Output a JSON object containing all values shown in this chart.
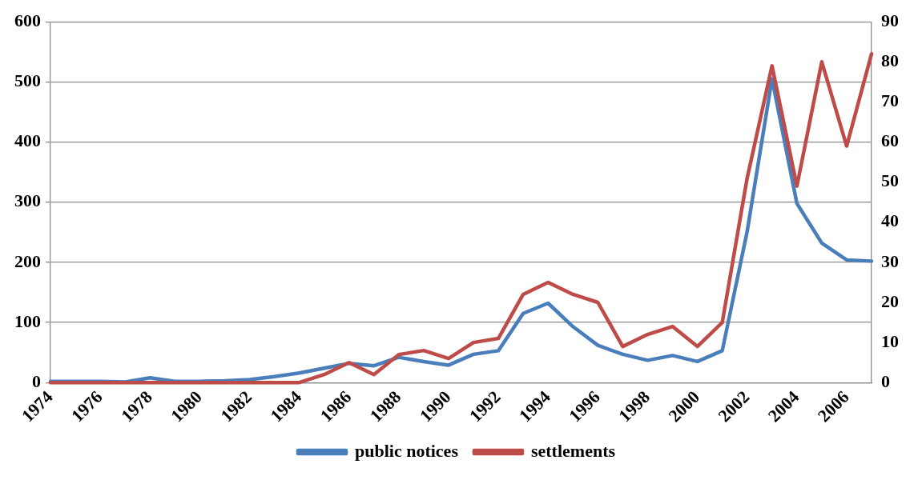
{
  "chart_data": {
    "type": "line",
    "categories": [
      "1974",
      null,
      "1976",
      null,
      "1978",
      null,
      "1980",
      null,
      "1982",
      null,
      "1984",
      null,
      "1986",
      null,
      "1988",
      null,
      "1990",
      null,
      "1992",
      null,
      "1994",
      null,
      "1996",
      null,
      "1998",
      null,
      "2000",
      null,
      "2002",
      null,
      "2004",
      null,
      "2006",
      null
    ],
    "series": [
      {
        "name": "public notices",
        "color": "#4a7ebb",
        "values": [
          2,
          2,
          2,
          1,
          8,
          2,
          2,
          3,
          5,
          10,
          16,
          24,
          32,
          28,
          42,
          35,
          29,
          47,
          53,
          115,
          132,
          93,
          62,
          47,
          37,
          45,
          35,
          53,
          251,
          505,
          298,
          232,
          204,
          202
        ]
      },
      {
        "name": "settlements",
        "color": "#be4b48",
        "axis": "y2",
        "values": [
          0,
          0,
          0,
          0,
          0,
          0,
          0,
          0,
          0,
          0,
          0,
          2,
          5,
          2,
          7,
          8,
          6,
          10,
          11,
          22,
          25,
          22,
          20,
          9,
          12,
          14,
          9,
          15,
          51,
          79,
          49,
          80,
          59,
          82
        ]
      }
    ],
    "ylim": [
      0,
      600
    ],
    "yticks": [
      0,
      100,
      200,
      300,
      400,
      500,
      600
    ],
    "y2lim": [
      0,
      90
    ],
    "y2ticks": [
      0,
      10,
      20,
      30,
      40,
      50,
      60,
      70,
      80,
      90
    ],
    "grid": "y",
    "legend": "bottom",
    "marker": "none",
    "line_style": "solid"
  }
}
